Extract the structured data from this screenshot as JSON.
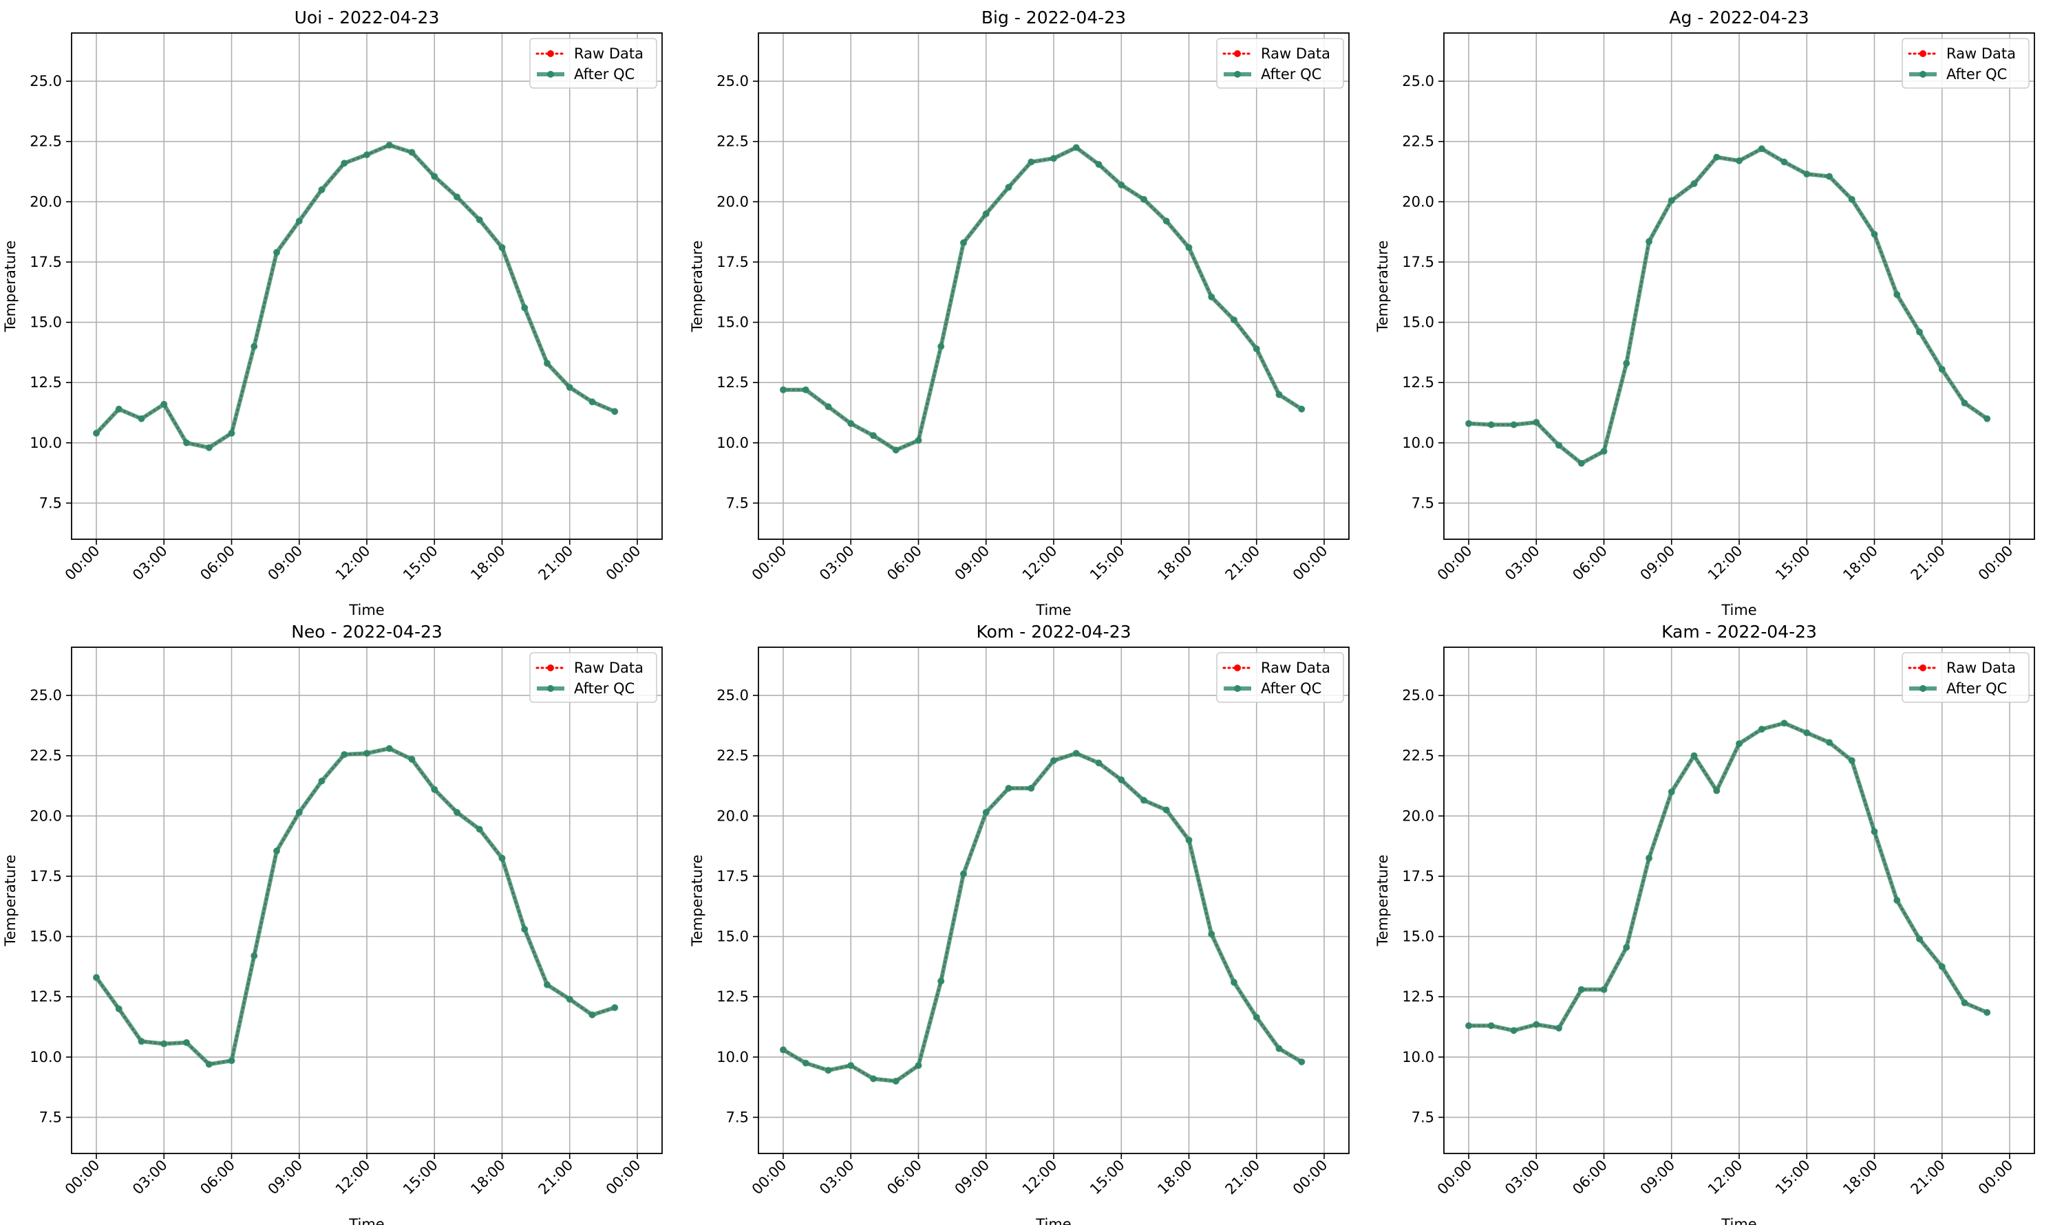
{
  "legend": {
    "raw_label": "Raw Data",
    "qc_label": "After QC",
    "placement": "upper-right"
  },
  "colors": {
    "raw": "#ff0000",
    "qc": "#2e8b6a",
    "grid": "#b0b0b0",
    "axis": "#000000"
  },
  "chart_data": [
    {
      "type": "line",
      "title": "Uoi - 2022-04-23",
      "xlabel": "Time",
      "ylabel": "Temperature",
      "xticks": [
        "00:00",
        "03:00",
        "06:00",
        "09:00",
        "12:00",
        "15:00",
        "18:00",
        "21:00",
        "00:00"
      ],
      "yticks": [
        "7.5",
        "10.0",
        "12.5",
        "15.0",
        "17.5",
        "20.0",
        "22.5",
        "25.0"
      ],
      "ylim": [
        6.0,
        27.0
      ],
      "grid": true,
      "x_hours": [
        0,
        1,
        2,
        3,
        4,
        5,
        6,
        7,
        8,
        9,
        10,
        11,
        12,
        13,
        14,
        15,
        16,
        17,
        18,
        19,
        20,
        21,
        22,
        23
      ],
      "series": [
        {
          "name": "Raw Data",
          "values": [
            10.4,
            11.4,
            11.0,
            11.6,
            10.0,
            9.8,
            10.4,
            14.0,
            17.9,
            19.2,
            20.5,
            21.6,
            21.95,
            22.35,
            22.05,
            21.05,
            20.2,
            19.25,
            18.1,
            15.6,
            13.3,
            12.3,
            11.7,
            11.3
          ]
        },
        {
          "name": "After QC",
          "values": [
            10.4,
            11.4,
            11.0,
            11.6,
            10.0,
            9.8,
            10.4,
            14.0,
            17.9,
            19.2,
            20.5,
            21.6,
            21.95,
            22.35,
            22.05,
            21.05,
            20.2,
            19.25,
            18.1,
            15.6,
            13.3,
            12.3,
            11.7,
            11.3
          ]
        }
      ]
    },
    {
      "type": "line",
      "title": "Big - 2022-04-23",
      "xlabel": "Time",
      "ylabel": "Temperature",
      "xticks": [
        "00:00",
        "03:00",
        "06:00",
        "09:00",
        "12:00",
        "15:00",
        "18:00",
        "21:00",
        "00:00"
      ],
      "yticks": [
        "7.5",
        "10.0",
        "12.5",
        "15.0",
        "17.5",
        "20.0",
        "22.5",
        "25.0"
      ],
      "ylim": [
        6.0,
        27.0
      ],
      "grid": true,
      "x_hours": [
        0,
        1,
        2,
        3,
        4,
        5,
        6,
        7,
        8,
        9,
        10,
        11,
        12,
        13,
        14,
        15,
        16,
        17,
        18,
        19,
        20,
        21,
        22,
        23
      ],
      "series": [
        {
          "name": "Raw Data",
          "values": [
            12.2,
            12.2,
            11.5,
            10.8,
            10.3,
            9.7,
            10.1,
            14.0,
            18.3,
            19.5,
            20.6,
            21.65,
            21.8,
            22.25,
            21.55,
            20.7,
            20.1,
            19.2,
            18.1,
            16.05,
            15.1,
            13.9,
            12.0,
            11.4
          ]
        },
        {
          "name": "After QC",
          "values": [
            12.2,
            12.2,
            11.5,
            10.8,
            10.3,
            9.7,
            10.1,
            14.0,
            18.3,
            19.5,
            20.6,
            21.65,
            21.8,
            22.25,
            21.55,
            20.7,
            20.1,
            19.2,
            18.1,
            16.05,
            15.1,
            13.9,
            12.0,
            11.4
          ]
        }
      ]
    },
    {
      "type": "line",
      "title": "Ag - 2022-04-23",
      "xlabel": "Time",
      "ylabel": "Temperature",
      "xticks": [
        "00:00",
        "03:00",
        "06:00",
        "09:00",
        "12:00",
        "15:00",
        "18:00",
        "21:00",
        "00:00"
      ],
      "yticks": [
        "7.5",
        "10.0",
        "12.5",
        "15.0",
        "17.5",
        "20.0",
        "22.5",
        "25.0"
      ],
      "ylim": [
        6.0,
        27.0
      ],
      "grid": true,
      "x_hours": [
        0,
        1,
        2,
        3,
        4,
        5,
        6,
        7,
        8,
        9,
        10,
        11,
        12,
        13,
        14,
        15,
        16,
        17,
        18,
        19,
        20,
        21,
        22,
        23
      ],
      "series": [
        {
          "name": "Raw Data",
          "values": [
            10.8,
            10.75,
            10.75,
            10.85,
            9.9,
            9.15,
            9.65,
            13.3,
            18.35,
            20.05,
            20.75,
            21.85,
            21.7,
            22.2,
            21.65,
            21.15,
            21.05,
            20.1,
            18.65,
            16.15,
            14.6,
            13.05,
            11.65,
            11.0
          ]
        },
        {
          "name": "After QC",
          "values": [
            10.8,
            10.75,
            10.75,
            10.85,
            9.9,
            9.15,
            9.65,
            13.3,
            18.35,
            20.05,
            20.75,
            21.85,
            21.7,
            22.2,
            21.65,
            21.15,
            21.05,
            20.1,
            18.65,
            16.15,
            14.6,
            13.05,
            11.65,
            11.0
          ]
        }
      ]
    },
    {
      "type": "line",
      "title": "Neo - 2022-04-23",
      "xlabel": "Time",
      "ylabel": "Temperature",
      "xticks": [
        "00:00",
        "03:00",
        "06:00",
        "09:00",
        "12:00",
        "15:00",
        "18:00",
        "21:00",
        "00:00"
      ],
      "yticks": [
        "7.5",
        "10.0",
        "12.5",
        "15.0",
        "17.5",
        "20.0",
        "22.5",
        "25.0"
      ],
      "ylim": [
        6.0,
        27.0
      ],
      "grid": true,
      "x_hours": [
        0,
        1,
        2,
        3,
        4,
        5,
        6,
        7,
        8,
        9,
        10,
        11,
        12,
        13,
        14,
        15,
        16,
        17,
        18,
        19,
        20,
        21,
        22,
        23
      ],
      "series": [
        {
          "name": "Raw Data",
          "values": [
            13.3,
            12.0,
            10.65,
            10.55,
            10.6,
            9.7,
            9.85,
            14.2,
            18.55,
            20.15,
            21.45,
            22.55,
            22.6,
            22.8,
            22.35,
            21.1,
            20.15,
            19.45,
            18.25,
            15.3,
            13.0,
            12.4,
            11.75,
            12.05
          ]
        },
        {
          "name": "After QC",
          "values": [
            13.3,
            12.0,
            10.65,
            10.55,
            10.6,
            9.7,
            9.85,
            14.2,
            18.55,
            20.15,
            21.45,
            22.55,
            22.6,
            22.8,
            22.35,
            21.1,
            20.15,
            19.45,
            18.25,
            15.3,
            13.0,
            12.4,
            11.75,
            12.05
          ]
        }
      ]
    },
    {
      "type": "line",
      "title": "Kom - 2022-04-23",
      "xlabel": "Time",
      "ylabel": "Temperature",
      "xticks": [
        "00:00",
        "03:00",
        "06:00",
        "09:00",
        "12:00",
        "15:00",
        "18:00",
        "21:00",
        "00:00"
      ],
      "yticks": [
        "7.5",
        "10.0",
        "12.5",
        "15.0",
        "17.5",
        "20.0",
        "22.5",
        "25.0"
      ],
      "ylim": [
        6.0,
        27.0
      ],
      "grid": true,
      "x_hours": [
        0,
        1,
        2,
        3,
        4,
        5,
        6,
        7,
        8,
        9,
        10,
        11,
        12,
        13,
        14,
        15,
        16,
        17,
        18,
        19,
        20,
        21,
        22,
        23
      ],
      "series": [
        {
          "name": "Raw Data",
          "values": [
            10.3,
            9.75,
            9.45,
            9.65,
            9.1,
            9.0,
            9.65,
            13.15,
            17.6,
            20.15,
            21.15,
            21.15,
            22.3,
            22.6,
            22.2,
            21.5,
            20.65,
            20.25,
            19.0,
            15.1,
            13.1,
            11.65,
            10.35,
            9.8
          ]
        },
        {
          "name": "After QC",
          "values": [
            10.3,
            9.75,
            9.45,
            9.65,
            9.1,
            9.0,
            9.65,
            13.15,
            17.6,
            20.15,
            21.15,
            21.15,
            22.3,
            22.6,
            22.2,
            21.5,
            20.65,
            20.25,
            19.0,
            15.1,
            13.1,
            11.65,
            10.35,
            9.8
          ]
        }
      ]
    },
    {
      "type": "line",
      "title": "Kam - 2022-04-23",
      "xlabel": "Time",
      "ylabel": "Temperature",
      "xticks": [
        "00:00",
        "03:00",
        "06:00",
        "09:00",
        "12:00",
        "15:00",
        "18:00",
        "21:00",
        "00:00"
      ],
      "yticks": [
        "7.5",
        "10.0",
        "12.5",
        "15.0",
        "17.5",
        "20.0",
        "22.5",
        "25.0"
      ],
      "ylim": [
        6.0,
        27.0
      ],
      "grid": true,
      "x_hours": [
        0,
        1,
        2,
        3,
        4,
        5,
        6,
        7,
        8,
        9,
        10,
        11,
        12,
        13,
        14,
        15,
        16,
        17,
        18,
        19,
        20,
        21,
        22,
        23
      ],
      "series": [
        {
          "name": "Raw Data",
          "values": [
            11.3,
            11.3,
            11.1,
            11.35,
            11.2,
            12.8,
            12.8,
            14.55,
            18.25,
            21.0,
            22.5,
            21.05,
            23.0,
            23.6,
            23.85,
            23.45,
            23.05,
            22.3,
            19.35,
            16.5,
            14.9,
            13.75,
            12.25,
            11.85
          ]
        },
        {
          "name": "After QC",
          "values": [
            11.3,
            11.3,
            11.1,
            11.35,
            11.2,
            12.8,
            12.8,
            14.55,
            18.25,
            21.0,
            22.5,
            21.05,
            23.0,
            23.6,
            23.85,
            23.45,
            23.05,
            22.3,
            19.35,
            16.5,
            14.9,
            13.75,
            12.25,
            11.85
          ]
        }
      ]
    }
  ]
}
